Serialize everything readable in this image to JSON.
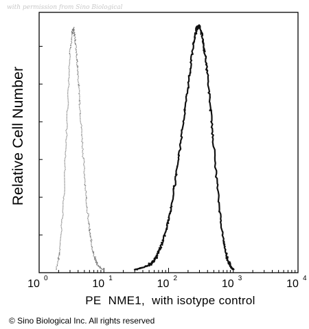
{
  "watermark": "with permission from Sino Biological",
  "copyright": "© Sino Biological Inc. All rights reserved",
  "chart_data": {
    "type": "area",
    "title": "",
    "xlabel": "PE  NME1,  with isotype control",
    "ylabel": "Relative Cell Number",
    "xscale": "log",
    "xlim": [
      1,
      10000
    ],
    "ylim": [
      0,
      1
    ],
    "x_tick_labels": [
      {
        "base": "10",
        "exp": "0",
        "value": 1
      },
      {
        "base": "10",
        "exp": "1",
        "value": 10
      },
      {
        "base": "10",
        "exp": "2",
        "value": 100
      },
      {
        "base": "10",
        "exp": "3",
        "value": 1000
      },
      {
        "base": "10",
        "exp": "4",
        "value": 10000
      }
    ],
    "grid": false,
    "legend": "none",
    "series": [
      {
        "style": "dotted-gray",
        "color": "#7a7a7a",
        "x": [
          1.85,
          2.1,
          2.4,
          2.7,
          3.0,
          3.2,
          3.4,
          3.6,
          3.8,
          4.0,
          4.3,
          4.6,
          5.0,
          5.5,
          6.0,
          6.6,
          7.2,
          8.0,
          8.8,
          9.6
        ],
        "y": [
          0.0,
          0.08,
          0.3,
          0.6,
          0.88,
          0.97,
          0.99,
          0.95,
          0.88,
          0.8,
          0.66,
          0.54,
          0.4,
          0.26,
          0.16,
          0.09,
          0.05,
          0.02,
          0.01,
          0.0
        ]
      },
      {
        "style": "solid-black",
        "color": "#111111",
        "x": [
          30,
          40,
          50,
          60,
          70,
          80,
          95,
          110,
          130,
          150,
          180,
          210,
          240,
          270,
          300,
          330,
          360,
          400,
          450,
          500,
          600,
          700,
          800,
          900,
          1000
        ],
        "y": [
          0.0,
          0.01,
          0.02,
          0.04,
          0.07,
          0.11,
          0.18,
          0.26,
          0.38,
          0.5,
          0.66,
          0.8,
          0.92,
          0.99,
          1.0,
          0.96,
          0.9,
          0.8,
          0.64,
          0.5,
          0.27,
          0.12,
          0.05,
          0.015,
          0.0
        ]
      }
    ]
  }
}
